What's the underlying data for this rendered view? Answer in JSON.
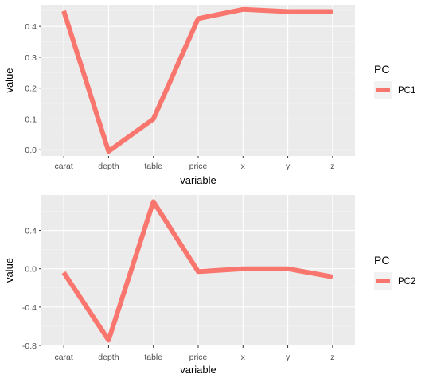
{
  "colors": {
    "panel_bg": "#ebebeb",
    "grid_major": "#ffffff",
    "grid_minor": "#f4f4f4",
    "line": "#f8766d",
    "tick_text": "#4d4d4d",
    "tick_mark": "#333333"
  },
  "chart_data": [
    {
      "type": "line",
      "xlabel": "variable",
      "ylabel": "value",
      "categories": [
        "carat",
        "depth",
        "table",
        "price",
        "x",
        "y",
        "z"
      ],
      "ylim": [
        -0.02,
        0.47
      ],
      "yticks": [
        0.0,
        0.1,
        0.2,
        0.3,
        0.4
      ],
      "ytick_labels": [
        "0.0",
        "0.1",
        "0.2",
        "0.3",
        "0.4"
      ],
      "legend_title": "PC",
      "legend_position": "right",
      "series": [
        {
          "name": "PC1",
          "values": [
            0.45,
            -0.005,
            0.1,
            0.425,
            0.455,
            0.448,
            0.448
          ]
        }
      ]
    },
    {
      "type": "line",
      "xlabel": "variable",
      "ylabel": "value",
      "categories": [
        "carat",
        "depth",
        "table",
        "price",
        "x",
        "y",
        "z"
      ],
      "ylim": [
        -0.8,
        0.77
      ],
      "yticks": [
        -0.8,
        -0.4,
        0.0,
        0.4
      ],
      "ytick_labels": [
        "-0.8",
        "-0.4",
        "0.0",
        "0.4"
      ],
      "legend_title": "PC",
      "legend_position": "right",
      "series": [
        {
          "name": "PC2",
          "values": [
            -0.04,
            -0.745,
            0.7,
            -0.03,
            0.0,
            0.0,
            -0.085
          ]
        }
      ]
    }
  ]
}
